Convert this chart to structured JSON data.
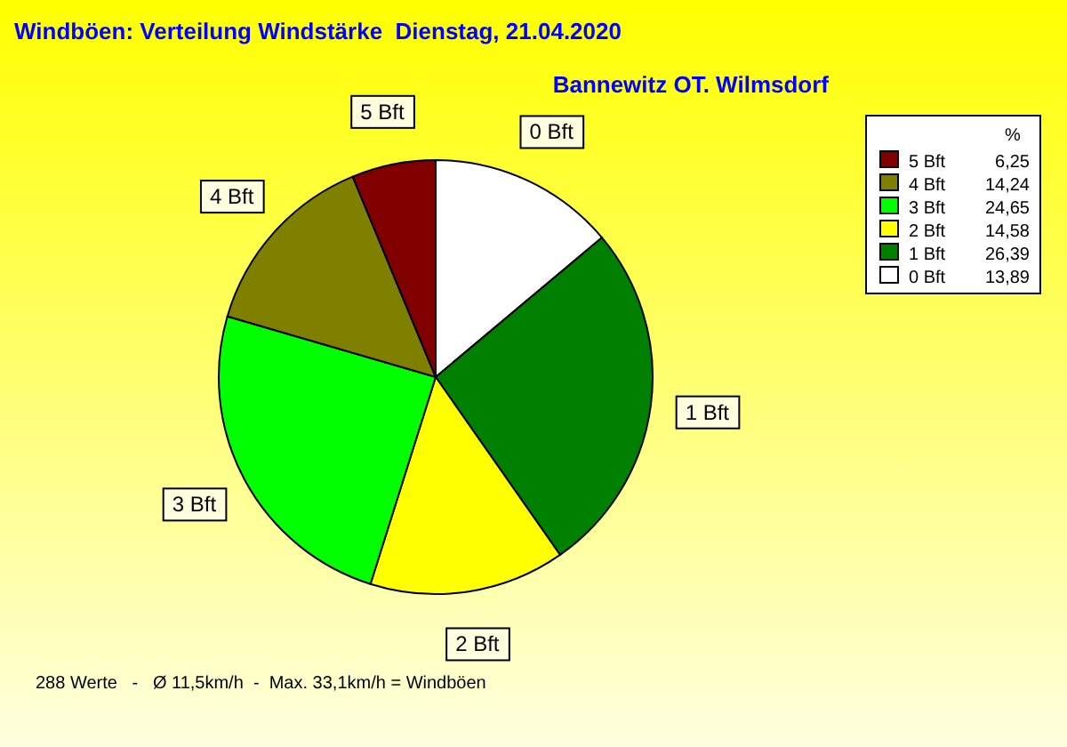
{
  "chart_data": {
    "type": "pie",
    "title": "Windböen: Verteilung Windstärke  Dienstag, 21.04.2020",
    "subtitle": "Bannewitz OT. Wilmsdorf",
    "categories": [
      "0 Bft",
      "1 Bft",
      "2 Bft",
      "3 Bft",
      "4 Bft",
      "5 Bft"
    ],
    "values": [
      13.89,
      26.39,
      14.58,
      24.65,
      14.24,
      6.25
    ],
    "value_labels": [
      "13,89",
      "26,39",
      "14,58",
      "24,65",
      "14,24",
      "6,25"
    ],
    "colors": [
      "#ffffff",
      "#008000",
      "#ffff00",
      "#00ff00",
      "#808000",
      "#800000"
    ],
    "legend": "top right",
    "legend_title": "%",
    "annotations": [
      "288 Werte   -   Ø 11,5km/h  -  Max. 33,1km/h = Windböen"
    ]
  }
}
